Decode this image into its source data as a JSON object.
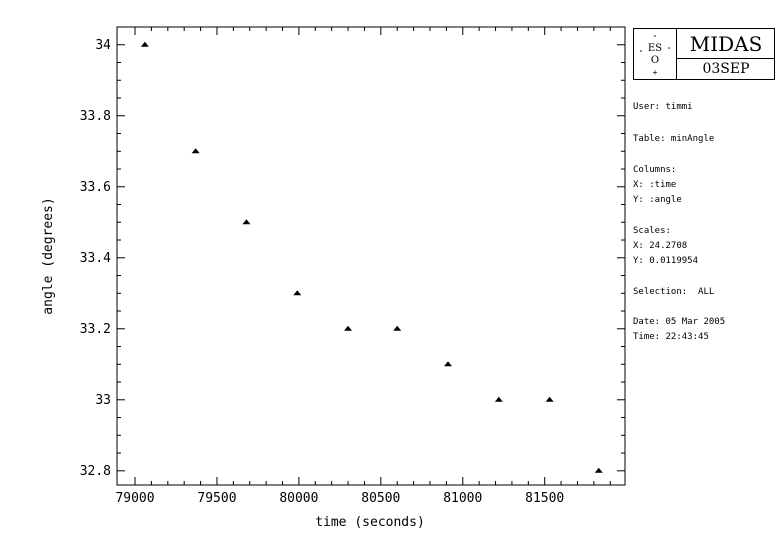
{
  "chart_data": {
    "type": "scatter",
    "xlabel": "time (seconds)",
    "ylabel": "angle (degrees)",
    "xlim": [
      78890,
      81990
    ],
    "ylim": [
      32.76,
      34.05
    ],
    "xticks": [
      79000,
      79500,
      80000,
      80500,
      81000,
      81500
    ],
    "yticks": [
      32.8,
      33,
      33.2,
      33.4,
      33.6,
      33.8,
      34
    ],
    "ytick_labels": [
      "32.8",
      "33",
      "33.2",
      "33.4",
      "33.6",
      "33.8",
      "34"
    ],
    "grid": false,
    "marker": "triangle",
    "points": [
      {
        "x": 79060,
        "y": 34.0
      },
      {
        "x": 79370,
        "y": 33.7
      },
      {
        "x": 79680,
        "y": 33.5
      },
      {
        "x": 79990,
        "y": 33.3
      },
      {
        "x": 80300,
        "y": 33.2
      },
      {
        "x": 80600,
        "y": 33.2
      },
      {
        "x": 80910,
        "y": 33.1
      },
      {
        "x": 81220,
        "y": 33.0
      },
      {
        "x": 81530,
        "y": 33.0
      },
      {
        "x": 81830,
        "y": 32.8
      }
    ]
  },
  "header": {
    "logo_text": "ES\nO",
    "title": "MIDAS",
    "version": "03SEP"
  },
  "info": {
    "user": "User: timmi",
    "table": "Table: minAngle",
    "columns_title": "Columns:",
    "columns_x": "X: :time",
    "columns_y": "Y: :angle",
    "scales_title": "Scales:",
    "scales_x": "X: 24.2708",
    "scales_y": "Y: 0.0119954",
    "selection": "Selection:  ALL",
    "date": "Date: 05 Mar 2005",
    "time": "Time: 22:43:45"
  },
  "colors": {
    "foreground": "#000000",
    "background": "#ffffff"
  }
}
